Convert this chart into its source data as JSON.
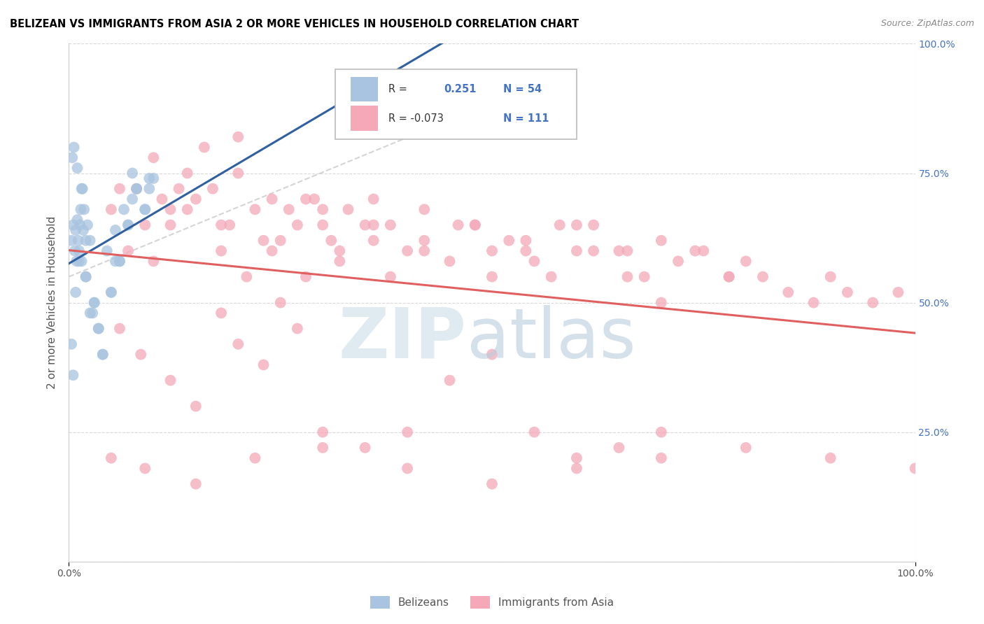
{
  "title": "BELIZEAN VS IMMIGRANTS FROM ASIA 2 OR MORE VEHICLES IN HOUSEHOLD CORRELATION CHART",
  "source": "Source: ZipAtlas.com",
  "ylabel": "2 or more Vehicles in Household",
  "blue_color": "#a8c4e0",
  "pink_color": "#f4a8b8",
  "blue_line_color": "#3060a0",
  "pink_line_color": "#e06060",
  "r_label_color": "#4472C4",
  "n_label_color": "#4472C4",
  "belizean_points": [
    [
      0.3,
      62
    ],
    [
      0.5,
      65
    ],
    [
      0.7,
      60
    ],
    [
      0.8,
      64
    ],
    [
      0.9,
      58
    ],
    [
      1.0,
      66
    ],
    [
      1.1,
      62
    ],
    [
      1.2,
      60
    ],
    [
      1.3,
      65
    ],
    [
      1.4,
      68
    ],
    [
      1.5,
      58
    ],
    [
      1.6,
      72
    ],
    [
      1.7,
      64
    ],
    [
      1.8,
      68
    ],
    [
      2.0,
      55
    ],
    [
      2.2,
      65
    ],
    [
      2.5,
      62
    ],
    [
      2.8,
      48
    ],
    [
      3.0,
      50
    ],
    [
      3.5,
      45
    ],
    [
      4.0,
      40
    ],
    [
      4.5,
      60
    ],
    [
      5.0,
      52
    ],
    [
      5.5,
      58
    ],
    [
      6.0,
      58
    ],
    [
      6.5,
      68
    ],
    [
      7.0,
      65
    ],
    [
      7.5,
      70
    ],
    [
      8.0,
      72
    ],
    [
      9.0,
      68
    ],
    [
      9.5,
      72
    ],
    [
      10.0,
      74
    ],
    [
      0.4,
      78
    ],
    [
      0.6,
      80
    ],
    [
      1.0,
      76
    ],
    [
      1.5,
      72
    ],
    [
      2.0,
      55
    ],
    [
      2.5,
      48
    ],
    [
      3.0,
      50
    ],
    [
      4.0,
      40
    ],
    [
      5.0,
      52
    ],
    [
      6.0,
      58
    ],
    [
      7.0,
      65
    ],
    [
      8.0,
      72
    ],
    [
      9.0,
      68
    ],
    [
      0.3,
      42
    ],
    [
      0.5,
      36
    ],
    [
      0.8,
      52
    ],
    [
      1.2,
      58
    ],
    [
      2.0,
      62
    ],
    [
      3.5,
      45
    ],
    [
      5.5,
      64
    ],
    [
      7.5,
      75
    ],
    [
      9.5,
      74
    ]
  ],
  "asia_points": [
    [
      5.0,
      68
    ],
    [
      8.0,
      72
    ],
    [
      12.0,
      65
    ],
    [
      15.0,
      70
    ],
    [
      18.0,
      60
    ],
    [
      20.0,
      75
    ],
    [
      22.0,
      68
    ],
    [
      25.0,
      62
    ],
    [
      28.0,
      70
    ],
    [
      30.0,
      65
    ],
    [
      10.0,
      58
    ],
    [
      13.0,
      72
    ],
    [
      16.0,
      80
    ],
    [
      19.0,
      65
    ],
    [
      21.0,
      55
    ],
    [
      23.0,
      62
    ],
    [
      26.0,
      68
    ],
    [
      29.0,
      70
    ],
    [
      32.0,
      60
    ],
    [
      35.0,
      65
    ],
    [
      7.0,
      60
    ],
    [
      9.0,
      65
    ],
    [
      11.0,
      70
    ],
    [
      14.0,
      68
    ],
    [
      17.0,
      72
    ],
    [
      24.0,
      60
    ],
    [
      27.0,
      65
    ],
    [
      31.0,
      62
    ],
    [
      33.0,
      68
    ],
    [
      36.0,
      70
    ],
    [
      38.0,
      65
    ],
    [
      40.0,
      60
    ],
    [
      42.0,
      62
    ],
    [
      45.0,
      58
    ],
    [
      48.0,
      65
    ],
    [
      50.0,
      60
    ],
    [
      52.0,
      62
    ],
    [
      55.0,
      58
    ],
    [
      57.0,
      55
    ],
    [
      60.0,
      60
    ],
    [
      62.0,
      65
    ],
    [
      65.0,
      60
    ],
    [
      68.0,
      55
    ],
    [
      70.0,
      62
    ],
    [
      72.0,
      58
    ],
    [
      75.0,
      60
    ],
    [
      78.0,
      55
    ],
    [
      80.0,
      58
    ],
    [
      6.0,
      45
    ],
    [
      8.5,
      40
    ],
    [
      12.0,
      35
    ],
    [
      15.0,
      30
    ],
    [
      18.0,
      48
    ],
    [
      20.0,
      42
    ],
    [
      23.0,
      38
    ],
    [
      27.0,
      45
    ],
    [
      30.0,
      25
    ],
    [
      35.0,
      22
    ],
    [
      40.0,
      25
    ],
    [
      45.0,
      35
    ],
    [
      50.0,
      40
    ],
    [
      55.0,
      25
    ],
    [
      60.0,
      20
    ],
    [
      65.0,
      22
    ],
    [
      70.0,
      25
    ],
    [
      25.0,
      50
    ],
    [
      28.0,
      55
    ],
    [
      32.0,
      58
    ],
    [
      36.0,
      62
    ],
    [
      38.0,
      55
    ],
    [
      42.0,
      60
    ],
    [
      46.0,
      65
    ],
    [
      50.0,
      55
    ],
    [
      54.0,
      60
    ],
    [
      58.0,
      65
    ],
    [
      62.0,
      60
    ],
    [
      66.0,
      55
    ],
    [
      70.0,
      50
    ],
    [
      74.0,
      60
    ],
    [
      78.0,
      55
    ],
    [
      82.0,
      55
    ],
    [
      85.0,
      52
    ],
    [
      88.0,
      50
    ],
    [
      90.0,
      55
    ],
    [
      92.0,
      52
    ],
    [
      95.0,
      50
    ],
    [
      98.0,
      52
    ],
    [
      10.0,
      78
    ],
    [
      14.0,
      75
    ],
    [
      20.0,
      82
    ],
    [
      5.0,
      20
    ],
    [
      9.0,
      18
    ],
    [
      15.0,
      15
    ],
    [
      22.0,
      20
    ],
    [
      30.0,
      22
    ],
    [
      40.0,
      18
    ],
    [
      50.0,
      15
    ],
    [
      60.0,
      18
    ],
    [
      70.0,
      20
    ],
    [
      80.0,
      22
    ],
    [
      90.0,
      20
    ],
    [
      100.0,
      18
    ],
    [
      6.0,
      72
    ],
    [
      12.0,
      68
    ],
    [
      18.0,
      65
    ],
    [
      24.0,
      70
    ],
    [
      30.0,
      68
    ],
    [
      36.0,
      65
    ],
    [
      42.0,
      68
    ],
    [
      48.0,
      65
    ],
    [
      54.0,
      62
    ],
    [
      60.0,
      65
    ],
    [
      66.0,
      60
    ]
  ]
}
